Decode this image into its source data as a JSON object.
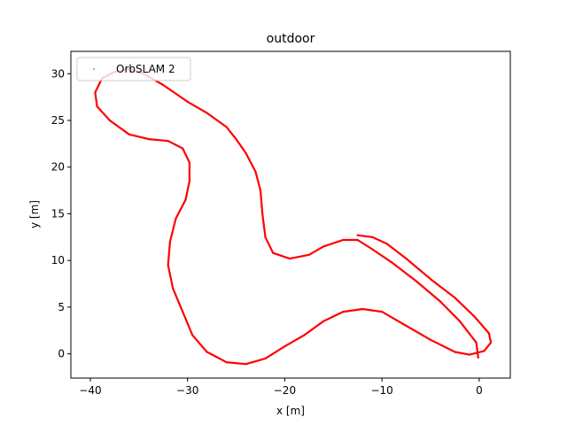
{
  "chart_data": {
    "type": "scatter",
    "title": "outdoor",
    "xlabel": "x [m]",
    "ylabel": "y [m]",
    "xlim": [
      -42,
      3.2
    ],
    "ylim": [
      -2.6,
      32.4
    ],
    "xticks": [
      -40,
      -30,
      -20,
      -10,
      0
    ],
    "yticks": [
      0,
      5,
      10,
      15,
      20,
      25,
      30
    ],
    "grid": false,
    "legend_placement": "upper-left",
    "series": [
      {
        "name": "OrbSLAM 2",
        "color": "#ff0000",
        "marker": "point",
        "points": [
          [
            -12.5,
            12.7
          ],
          [
            -11.0,
            12.5
          ],
          [
            -9.5,
            11.8
          ],
          [
            -7.5,
            10.2
          ],
          [
            -5.0,
            8.0
          ],
          [
            -2.5,
            6.0
          ],
          [
            -0.5,
            4.0
          ],
          [
            1.0,
            2.2
          ],
          [
            1.2,
            1.2
          ],
          [
            0.5,
            0.3
          ],
          [
            -1.0,
            -0.1
          ],
          [
            -2.5,
            0.2
          ],
          [
            -5.0,
            1.5
          ],
          [
            -7.5,
            3.0
          ],
          [
            -10.0,
            4.5
          ],
          [
            -12.0,
            4.8
          ],
          [
            -14.0,
            4.5
          ],
          [
            -16.0,
            3.5
          ],
          [
            -18.0,
            2.0
          ],
          [
            -20.0,
            0.8
          ],
          [
            -22.0,
            -0.5
          ],
          [
            -24.0,
            -1.1
          ],
          [
            -26.0,
            -0.9
          ],
          [
            -28.0,
            0.2
          ],
          [
            -29.5,
            2.0
          ],
          [
            -30.5,
            4.5
          ],
          [
            -31.5,
            7.0
          ],
          [
            -32.0,
            9.5
          ],
          [
            -31.8,
            12.0
          ],
          [
            -31.2,
            14.5
          ],
          [
            -30.2,
            16.5
          ],
          [
            -29.8,
            18.5
          ],
          [
            -29.8,
            20.5
          ],
          [
            -30.5,
            22.0
          ],
          [
            -32.0,
            22.8
          ],
          [
            -34.0,
            23.0
          ],
          [
            -36.0,
            23.5
          ],
          [
            -38.0,
            25.0
          ],
          [
            -39.3,
            26.5
          ],
          [
            -39.5,
            28.0
          ],
          [
            -38.8,
            29.5
          ],
          [
            -37.5,
            30.2
          ],
          [
            -36.0,
            30.5
          ],
          [
            -34.5,
            30.0
          ],
          [
            -32.5,
            28.8
          ],
          [
            -30.0,
            27.0
          ],
          [
            -28.0,
            25.8
          ],
          [
            -26.0,
            24.3
          ],
          [
            -25.0,
            23.0
          ],
          [
            -24.0,
            21.5
          ],
          [
            -23.0,
            19.5
          ],
          [
            -22.5,
            17.5
          ],
          [
            -22.3,
            15.0
          ],
          [
            -22.0,
            12.5
          ],
          [
            -21.2,
            10.8
          ],
          [
            -19.5,
            10.2
          ],
          [
            -17.5,
            10.6
          ],
          [
            -16.0,
            11.5
          ],
          [
            -14.0,
            12.2
          ],
          [
            -12.5,
            12.2
          ],
          [
            -11.0,
            11.2
          ],
          [
            -9.0,
            9.8
          ],
          [
            -6.5,
            7.8
          ],
          [
            -4.0,
            5.6
          ],
          [
            -2.0,
            3.5
          ],
          [
            -0.3,
            1.2
          ],
          [
            -0.1,
            -0.4
          ]
        ]
      }
    ]
  }
}
